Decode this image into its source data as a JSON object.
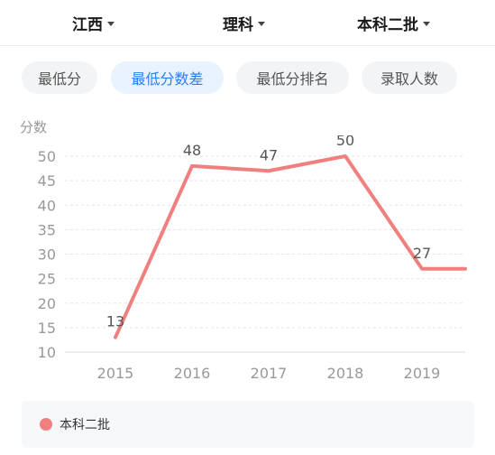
{
  "filters": {
    "province": "江西",
    "subject": "理科",
    "batch": "本科二批"
  },
  "tabs": [
    {
      "label": "最低分",
      "active": false
    },
    {
      "label": "最低分数差",
      "active": true
    },
    {
      "label": "最低分排名",
      "active": false
    },
    {
      "label": "录取人数",
      "active": false
    }
  ],
  "chart_data": {
    "type": "line",
    "ylabel": "分数",
    "xlabel": "",
    "categories": [
      "2015",
      "2016",
      "2017",
      "2018",
      "2019"
    ],
    "series": [
      {
        "name": "本科二批",
        "values": [
          13,
          48,
          47,
          50,
          27
        ],
        "color": "#f08080"
      }
    ],
    "extra_point": {
      "label": "",
      "value": 27,
      "note": "line continues flat to right edge"
    },
    "yticks": [
      10,
      15,
      20,
      25,
      30,
      35,
      40,
      45,
      50
    ],
    "ylim": [
      10,
      52
    ],
    "grid": true,
    "legend_position": "bottom"
  },
  "colors": {
    "accent": "#2f7df6",
    "series": "#f08080",
    "tab_bg": "#f3f4f6",
    "tab_active_bg": "#e9f2ff"
  }
}
